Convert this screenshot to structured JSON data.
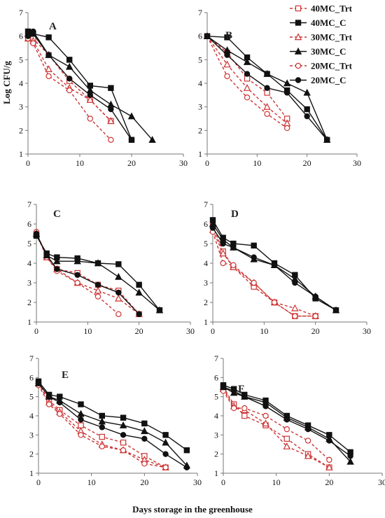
{
  "chart_data": {
    "type": "line",
    "ylabel": "Log CFU/g",
    "xlabel": "Days storage in the greenhouse",
    "legend_position": "top-right",
    "series_styles": [
      {
        "name": "40MC_Trt",
        "color": "#cc3333",
        "marker": "square-open",
        "dashed": true
      },
      {
        "name": "40MC_C",
        "color": "#111111",
        "marker": "square-filled",
        "dashed": false
      },
      {
        "name": "30MC_Trt",
        "color": "#cc3333",
        "marker": "triangle-open",
        "dashed": true
      },
      {
        "name": "30MC_C",
        "color": "#111111",
        "marker": "triangle-filled",
        "dashed": false
      },
      {
        "name": "20MC_Trt",
        "color": "#cc3333",
        "marker": "circle-open",
        "dashed": true
      },
      {
        "name": "20MC_C",
        "color": "#111111",
        "marker": "circle-filled",
        "dashed": false
      }
    ],
    "panels": [
      {
        "label": "A",
        "xlim": [
          0,
          30
        ],
        "ylim": [
          1,
          7
        ],
        "xticks": [
          0,
          10,
          20,
          30
        ],
        "yticks": [
          1,
          2,
          3,
          4,
          5,
          6,
          7
        ],
        "series": [
          {
            "name": "40MC_Trt",
            "x": [
              0,
              1,
              4,
              8,
              12,
              16
            ],
            "y": [
              6.0,
              5.9,
              5.2,
              4.1,
              3.3,
              2.4
            ]
          },
          {
            "name": "40MC_C",
            "x": [
              0,
              1,
              4,
              8,
              12,
              16,
              20
            ],
            "y": [
              6.2,
              6.1,
              5.95,
              5.0,
              3.9,
              3.8,
              1.6
            ]
          },
          {
            "name": "30MC_Trt",
            "x": [
              0,
              1,
              4,
              8,
              12,
              16
            ],
            "y": [
              5.9,
              5.8,
              4.6,
              3.8,
              3.3,
              2.4
            ]
          },
          {
            "name": "30MC_C",
            "x": [
              0,
              1,
              4,
              8,
              12,
              16,
              20,
              24
            ],
            "y": [
              6.1,
              6.1,
              5.2,
              4.7,
              3.7,
              3.1,
              2.6,
              1.6
            ]
          },
          {
            "name": "20MC_Trt",
            "x": [
              0,
              1,
              4,
              8,
              12,
              16
            ],
            "y": [
              5.9,
              5.7,
              4.3,
              3.7,
              2.5,
              1.6
            ]
          },
          {
            "name": "20MC_C",
            "x": [
              0,
              1,
              4,
              8,
              12,
              16,
              20
            ],
            "y": [
              6.0,
              6.2,
              5.2,
              4.2,
              3.5,
              2.9,
              1.6
            ]
          }
        ]
      },
      {
        "label": "B",
        "xlim": [
          0,
          30
        ],
        "ylim": [
          1,
          7
        ],
        "xticks": [
          0,
          10,
          20,
          30
        ],
        "yticks": [
          1,
          2,
          3,
          4,
          5,
          6,
          7
        ],
        "series": [
          {
            "name": "40MC_Trt",
            "x": [
              0,
              4,
              8,
              12,
              16
            ],
            "y": [
              6.0,
              5.3,
              4.2,
              3.6,
              2.5
            ]
          },
          {
            "name": "40MC_C",
            "x": [
              0,
              4,
              8,
              12,
              16,
              20,
              24
            ],
            "y": [
              6.0,
              5.95,
              5.1,
              4.4,
              3.7,
              2.9,
              1.6
            ]
          },
          {
            "name": "30MC_Trt",
            "x": [
              0,
              4,
              8,
              12,
              16
            ],
            "y": [
              6.0,
              4.8,
              3.8,
              3.0,
              2.3
            ]
          },
          {
            "name": "30MC_C",
            "x": [
              0,
              4,
              8,
              12,
              16,
              20,
              24
            ],
            "y": [
              6.0,
              5.4,
              4.9,
              4.4,
              4.0,
              3.6,
              1.6
            ]
          },
          {
            "name": "20MC_Trt",
            "x": [
              0,
              4,
              8,
              12,
              16
            ],
            "y": [
              6.0,
              4.3,
              3.4,
              2.7,
              2.1
            ]
          },
          {
            "name": "20MC_C",
            "x": [
              0,
              4,
              8,
              12,
              16,
              20,
              24
            ],
            "y": [
              6.0,
              5.2,
              4.4,
              3.8,
              3.6,
              2.6,
              1.6
            ]
          }
        ]
      },
      {
        "label": "C",
        "xlim": [
          0,
          30
        ],
        "ylim": [
          1,
          7
        ],
        "xticks": [
          0,
          10,
          20,
          30
        ],
        "yticks": [
          1,
          2,
          3,
          4,
          5,
          6,
          7
        ],
        "series": [
          {
            "name": "40MC_Trt",
            "x": [
              0,
              2,
              4,
              8,
              12,
              16,
              20
            ],
            "y": [
              5.5,
              4.4,
              3.7,
              3.5,
              2.9,
              2.6,
              1.4
            ]
          },
          {
            "name": "40MC_C",
            "x": [
              0,
              2,
              4,
              8,
              12,
              16,
              20,
              24
            ],
            "y": [
              5.4,
              4.5,
              4.3,
              4.25,
              4.0,
              3.95,
              2.9,
              1.6
            ]
          },
          {
            "name": "30MC_Trt",
            "x": [
              0,
              2,
              4,
              8,
              12,
              16,
              20
            ],
            "y": [
              5.5,
              4.3,
              3.7,
              3.0,
              2.6,
              2.2,
              1.4
            ]
          },
          {
            "name": "30MC_C",
            "x": [
              0,
              2,
              4,
              8,
              12,
              16,
              20,
              24
            ],
            "y": [
              5.5,
              4.4,
              4.1,
              4.1,
              4.0,
              3.3,
              2.5,
              1.6
            ]
          },
          {
            "name": "20MC_Trt",
            "x": [
              0,
              2,
              4,
              8,
              12,
              16
            ],
            "y": [
              5.6,
              4.3,
              3.6,
              3.0,
              2.3,
              1.4
            ]
          },
          {
            "name": "20MC_C",
            "x": [
              0,
              2,
              4,
              8,
              12,
              16,
              20
            ],
            "y": [
              5.5,
              4.4,
              3.7,
              3.4,
              2.9,
              2.5,
              1.4
            ]
          }
        ]
      },
      {
        "label": "D",
        "xlim": [
          0,
          30
        ],
        "ylim": [
          1,
          7
        ],
        "xticks": [
          0,
          10,
          20,
          30
        ],
        "yticks": [
          1,
          2,
          3,
          4,
          5,
          6,
          7
        ],
        "series": [
          {
            "name": "40MC_Trt",
            "x": [
              0,
              2,
              4,
              8,
              12,
              16,
              20
            ],
            "y": [
              5.9,
              4.6,
              3.8,
              2.8,
              2.0,
              1.3,
              1.3
            ]
          },
          {
            "name": "40MC_C",
            "x": [
              0,
              2,
              4,
              8,
              12,
              16,
              20,
              24
            ],
            "y": [
              6.2,
              5.3,
              5.0,
              4.9,
              4.0,
              3.4,
              2.2,
              1.6
            ]
          },
          {
            "name": "30MC_Trt",
            "x": [
              0,
              2,
              4,
              8,
              12,
              16,
              20
            ],
            "y": [
              5.7,
              4.5,
              3.8,
              3.0,
              2.0,
              1.7,
              1.3
            ]
          },
          {
            "name": "30MC_C",
            "x": [
              0,
              2,
              4,
              8,
              12,
              16,
              20,
              24
            ],
            "y": [
              6.0,
              5.2,
              4.8,
              4.2,
              3.9,
              3.2,
              2.3,
              1.6
            ]
          },
          {
            "name": "20MC_Trt",
            "x": [
              0,
              2,
              4,
              8,
              12,
              16,
              20
            ],
            "y": [
              5.6,
              4.0,
              3.9,
              3.0,
              2.0,
              1.3,
              1.3
            ]
          },
          {
            "name": "20MC_C",
            "x": [
              0,
              2,
              4,
              8,
              12,
              16,
              20,
              24
            ],
            "y": [
              5.8,
              5.0,
              4.8,
              4.3,
              3.9,
              3.0,
              2.3,
              1.6
            ]
          }
        ]
      },
      {
        "label": "E",
        "xlim": [
          0,
          30
        ],
        "ylim": [
          1,
          7
        ],
        "xticks": [
          0,
          10,
          20,
          30
        ],
        "yticks": [
          1,
          2,
          3,
          4,
          5,
          6,
          7
        ],
        "series": [
          {
            "name": "40MC_Trt",
            "x": [
              0,
              2,
              4,
              8,
              12,
              16,
              20,
              24
            ],
            "y": [
              5.7,
              4.8,
              4.3,
              3.5,
              2.9,
              2.6,
              1.9,
              1.3
            ]
          },
          {
            "name": "40MC_C",
            "x": [
              0,
              2,
              4,
              8,
              12,
              16,
              20,
              24,
              28
            ],
            "y": [
              5.8,
              5.1,
              5.0,
              4.6,
              4.0,
              3.9,
              3.6,
              3.0,
              2.2
            ]
          },
          {
            "name": "30MC_Trt",
            "x": [
              0,
              2,
              4,
              8,
              12,
              16,
              20,
              24
            ],
            "y": [
              5.7,
              4.7,
              4.2,
              3.2,
              2.5,
              2.2,
              1.7,
              1.3
            ]
          },
          {
            "name": "30MC_C",
            "x": [
              0,
              2,
              4,
              8,
              12,
              16,
              20,
              24,
              28
            ],
            "y": [
              5.7,
              5.0,
              4.8,
              4.1,
              3.7,
              3.5,
              3.2,
              2.6,
              1.4
            ]
          },
          {
            "name": "20MC_Trt",
            "x": [
              0,
              2,
              4,
              8,
              12,
              16,
              20,
              24
            ],
            "y": [
              5.6,
              4.6,
              4.1,
              3.0,
              2.4,
              2.2,
              1.5,
              1.3
            ]
          },
          {
            "name": "20MC_C",
            "x": [
              0,
              2,
              4,
              8,
              12,
              16,
              20,
              24,
              28
            ],
            "y": [
              5.7,
              5.0,
              4.7,
              3.8,
              3.4,
              3.0,
              2.8,
              2.0,
              1.3
            ]
          }
        ]
      },
      {
        "label": "F",
        "xlim": [
          0,
          30
        ],
        "ylim": [
          1,
          7
        ],
        "xticks": [
          0,
          10,
          20,
          30
        ],
        "yticks": [
          1,
          2,
          3,
          4,
          5,
          6,
          7
        ],
        "series": [
          {
            "name": "40MC_Trt",
            "x": [
              0,
              2,
              4,
              8,
              12,
              16,
              20
            ],
            "y": [
              5.5,
              4.6,
              4.0,
              3.5,
              2.8,
              2.0,
              1.3
            ]
          },
          {
            "name": "40MC_C",
            "x": [
              0,
              2,
              4,
              8,
              12,
              16,
              20,
              24
            ],
            "y": [
              5.6,
              5.4,
              5.1,
              4.8,
              4.0,
              3.5,
              3.0,
              2.1
            ]
          },
          {
            "name": "30MC_Trt",
            "x": [
              0,
              2,
              4,
              8,
              12,
              16,
              20
            ],
            "y": [
              5.4,
              4.5,
              4.3,
              3.6,
              2.4,
              1.9,
              1.3
            ]
          },
          {
            "name": "30MC_C",
            "x": [
              0,
              2,
              4,
              8,
              12,
              16,
              20,
              24
            ],
            "y": [
              5.5,
              5.2,
              5.0,
              4.7,
              3.9,
              3.4,
              2.8,
              1.6
            ]
          },
          {
            "name": "20MC_Trt",
            "x": [
              0,
              2,
              4,
              8,
              12,
              16,
              20
            ],
            "y": [
              5.3,
              4.4,
              4.4,
              4.0,
              3.3,
              2.7,
              1.7
            ]
          },
          {
            "name": "20MC_C",
            "x": [
              0,
              2,
              4,
              8,
              12,
              16,
              20,
              24
            ],
            "y": [
              5.5,
              5.3,
              5.0,
              4.5,
              3.8,
              3.3,
              2.7,
              1.9
            ]
          }
        ]
      }
    ]
  }
}
